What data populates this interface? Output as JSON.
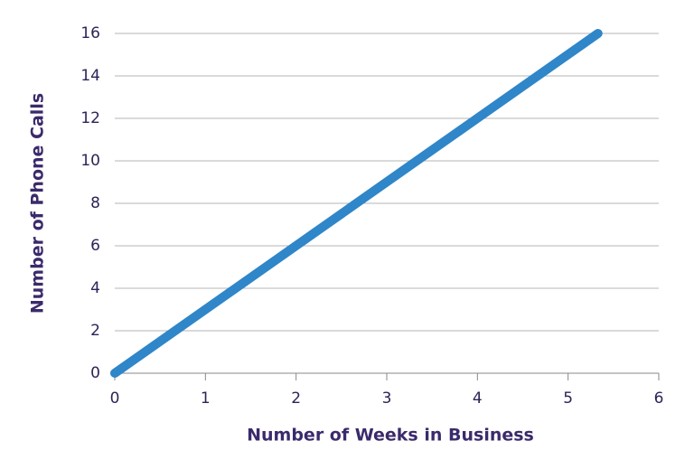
{
  "chart_data": {
    "type": "line",
    "x_label": "Number of Weeks in Business",
    "y_label": "Number of Phone Calls",
    "x": [
      0,
      5.33
    ],
    "values": [
      0,
      16
    ],
    "color": "#2f86c8",
    "xlim": [
      0,
      6
    ],
    "xticks": [
      0,
      1,
      2,
      3,
      4,
      5,
      6
    ],
    "ylim": [
      0,
      16
    ],
    "yticks": [
      0,
      2,
      4,
      6,
      8,
      10,
      12,
      14,
      16
    ],
    "grid": true
  }
}
